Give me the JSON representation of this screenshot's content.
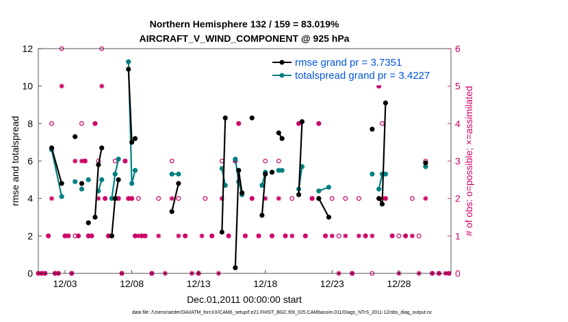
{
  "chart_data": {
    "type": "line",
    "title": "Northern Hemisphere 132 / 159 = 83.019%",
    "subtitle": "AIRCRAFT_V_WIND_COMPONENT @ 925 hPa",
    "xlabel": "Dec.01,2011 00:00:00 start",
    "ylabel": "rmse and totalspread",
    "y2label": "# of obs: o=possible; ×=assimilated",
    "footnote": "data file: /Users/raeder/DAI/ATM_forcXX/CAM6_setup/f.e21.FHIST_BGC.f09_025.CAM6assim.011/Diags_NTrS_2011-12/obs_diag_output.nc",
    "xlim": [
      1,
      31.9
    ],
    "ylim": [
      0,
      12
    ],
    "y2lim": [
      0,
      6
    ],
    "xticks": [
      {
        "v": 3,
        "label": "12/03"
      },
      {
        "v": 8,
        "label": "12/08"
      },
      {
        "v": 13,
        "label": "12/13"
      },
      {
        "v": 18,
        "label": "12/18"
      },
      {
        "v": 23,
        "label": "12/23"
      },
      {
        "v": 28,
        "label": "12/28"
      }
    ],
    "yticks": [
      "0",
      "2",
      "4",
      "6",
      "8",
      "10",
      "12"
    ],
    "y2ticks": [
      "0",
      "1",
      "2",
      "3",
      "4",
      "5",
      "6"
    ],
    "legend": [
      {
        "label": "rmse grand pr = 3.7351",
        "color": "#000000"
      },
      {
        "label": "totalspread grand pr = 3.4227",
        "color": "#008080"
      }
    ],
    "colors": {
      "rmse": "#000000",
      "spread": "#008080",
      "obs": "#cc0066",
      "legend_text": "#0055dd"
    },
    "series": [
      {
        "name": "rmse",
        "points": [
          [
            2.0,
            6.7
          ],
          [
            2.75,
            4.8
          ],
          [
            3.75,
            7.3
          ],
          [
            4.25,
            4.8
          ],
          [
            4.75,
            2.7
          ],
          [
            5.25,
            3.0
          ],
          [
            5.5,
            5.8
          ],
          [
            5.75,
            6.7
          ],
          [
            6.5,
            2.0
          ],
          [
            6.75,
            4.0
          ],
          [
            7.0,
            5.0
          ],
          [
            7.75,
            10.9
          ],
          [
            8.0,
            7.0
          ],
          [
            8.25,
            7.2
          ],
          [
            11.0,
            3.3
          ],
          [
            11.5,
            4.8
          ],
          [
            14.75,
            2.2
          ],
          [
            15.0,
            8.3
          ],
          [
            15.75,
            0.3
          ],
          [
            16.0,
            5.5
          ],
          [
            16.25,
            4.3
          ],
          [
            17.0,
            8.3
          ],
          [
            17.75,
            3.1
          ],
          [
            18.0,
            5.3
          ],
          [
            18.5,
            5.4
          ],
          [
            19.0,
            7.5
          ],
          [
            19.25,
            7.2
          ],
          [
            20.5,
            4.2
          ],
          [
            20.75,
            8.1
          ],
          [
            22.0,
            4.0
          ],
          [
            22.75,
            3.0
          ],
          [
            26.0,
            7.7
          ],
          [
            26.5,
            4.0
          ],
          [
            26.75,
            3.7
          ],
          [
            27.0,
            9.1
          ],
          [
            30.0,
            5.9
          ]
        ]
      },
      {
        "name": "totalspread",
        "points": [
          [
            2.0,
            6.6
          ],
          [
            2.75,
            4.1
          ],
          [
            3.75,
            4.9
          ],
          [
            4.25,
            4.5
          ],
          [
            4.75,
            5.0
          ],
          [
            5.5,
            4.4
          ],
          [
            5.75,
            5.0
          ],
          [
            6.5,
            4.0
          ],
          [
            6.75,
            5.3
          ],
          [
            7.0,
            6.1
          ],
          [
            7.75,
            11.3
          ],
          [
            8.0,
            4.8
          ],
          [
            8.25,
            5.5
          ],
          [
            11.0,
            5.3
          ],
          [
            11.5,
            5.3
          ],
          [
            14.75,
            5.6
          ],
          [
            15.0,
            4.7
          ],
          [
            15.75,
            6.1
          ],
          [
            16.0,
            4.9
          ],
          [
            16.25,
            4.2
          ],
          [
            17.75,
            4.7
          ],
          [
            18.0,
            5.4
          ],
          [
            19.0,
            5.5
          ],
          [
            19.25,
            5.5
          ],
          [
            20.5,
            4.5
          ],
          [
            20.75,
            5.7
          ],
          [
            22.0,
            4.4
          ],
          [
            22.75,
            4.6
          ],
          [
            26.0,
            5.3
          ],
          [
            26.5,
            4.5
          ],
          [
            26.75,
            5.3
          ],
          [
            27.0,
            5.3
          ],
          [
            30.0,
            5.7
          ]
        ]
      }
    ],
    "segments": [
      [
        2.0,
        2.75
      ],
      [
        5.25,
        5.75
      ],
      [
        6.5,
        7.0
      ],
      [
        7.75,
        8.25
      ],
      [
        11.0,
        11.5
      ],
      [
        14.75,
        15.0
      ],
      [
        15.75,
        16.25
      ],
      [
        17.75,
        18.0
      ],
      [
        19.0,
        19.25
      ],
      [
        20.5,
        20.75
      ],
      [
        22.0,
        22.75
      ],
      [
        26.5,
        27.0
      ]
    ],
    "obs_possible": [
      [
        1.0,
        0
      ],
      [
        1.25,
        0
      ],
      [
        1.5,
        0
      ],
      [
        1.75,
        1
      ],
      [
        2.0,
        4
      ],
      [
        2.25,
        0
      ],
      [
        2.5,
        0
      ],
      [
        2.75,
        6
      ],
      [
        3.0,
        1
      ],
      [
        3.25,
        1
      ],
      [
        3.5,
        0
      ],
      [
        3.75,
        1
      ],
      [
        4.0,
        1
      ],
      [
        4.25,
        4
      ],
      [
        4.5,
        3
      ],
      [
        4.75,
        1
      ],
      [
        5.0,
        1
      ],
      [
        5.25,
        4
      ],
      [
        5.5,
        3
      ],
      [
        5.75,
        6
      ],
      [
        6.0,
        2
      ],
      [
        6.25,
        1
      ],
      [
        6.5,
        1
      ],
      [
        6.75,
        3
      ],
      [
        7.0,
        2
      ],
      [
        7.25,
        0
      ],
      [
        7.5,
        3
      ],
      [
        7.75,
        2
      ],
      [
        8.0,
        2
      ],
      [
        8.25,
        1
      ],
      [
        8.5,
        2
      ],
      [
        8.75,
        1
      ],
      [
        9.0,
        1
      ],
      [
        9.5,
        0
      ],
      [
        10.0,
        2
      ],
      [
        11.0,
        3
      ],
      [
        11.5,
        2
      ],
      [
        12.0,
        1
      ],
      [
        13.0,
        0
      ],
      [
        13.5,
        2
      ],
      [
        14.0,
        1
      ],
      [
        14.75,
        3
      ],
      [
        15.25,
        1
      ],
      [
        15.75,
        3
      ],
      [
        16.0,
        4
      ],
      [
        16.5,
        1
      ],
      [
        17.0,
        2
      ],
      [
        17.5,
        1
      ],
      [
        18.0,
        3
      ],
      [
        18.5,
        1
      ],
      [
        19.0,
        3
      ],
      [
        19.5,
        1
      ],
      [
        20.0,
        2
      ],
      [
        20.5,
        4
      ],
      [
        21.0,
        1
      ],
      [
        21.5,
        2
      ],
      [
        22.0,
        4
      ],
      [
        22.5,
        1
      ],
      [
        23.0,
        2
      ],
      [
        23.5,
        1
      ],
      [
        24.0,
        2
      ],
      [
        24.5,
        0
      ],
      [
        25.0,
        2
      ],
      [
        25.5,
        1
      ],
      [
        26.0,
        0
      ],
      [
        26.5,
        5
      ],
      [
        26.75,
        4
      ],
      [
        27.0,
        2
      ],
      [
        27.5,
        1
      ],
      [
        28.0,
        1
      ],
      [
        28.5,
        1
      ],
      [
        29.0,
        2
      ],
      [
        29.5,
        1
      ],
      [
        30.0,
        3
      ],
      [
        30.5,
        0
      ],
      [
        31.0,
        0
      ],
      [
        31.75,
        0
      ]
    ],
    "obs_assimilated": [
      [
        1.0,
        0
      ],
      [
        1.25,
        0
      ],
      [
        1.5,
        0
      ],
      [
        1.75,
        1
      ],
      [
        2.0,
        2
      ],
      [
        2.25,
        0
      ],
      [
        2.5,
        0
      ],
      [
        2.75,
        5
      ],
      [
        3.0,
        1
      ],
      [
        3.25,
        1
      ],
      [
        3.5,
        0
      ],
      [
        3.75,
        3
      ],
      [
        4.0,
        1
      ],
      [
        4.25,
        3
      ],
      [
        4.5,
        3
      ],
      [
        4.75,
        1
      ],
      [
        5.0,
        1
      ],
      [
        5.25,
        4
      ],
      [
        5.5,
        2
      ],
      [
        5.75,
        5
      ],
      [
        6.0,
        2
      ],
      [
        6.25,
        1
      ],
      [
        6.5,
        1
      ],
      [
        6.75,
        2
      ],
      [
        7.0,
        2
      ],
      [
        7.25,
        0
      ],
      [
        7.5,
        3
      ],
      [
        7.75,
        2
      ],
      [
        8.0,
        2
      ],
      [
        8.25,
        1
      ],
      [
        8.5,
        1
      ],
      [
        8.75,
        1
      ],
      [
        9.0,
        1
      ],
      [
        9.5,
        0
      ],
      [
        10.0,
        1
      ],
      [
        10.5,
        0
      ],
      [
        11.0,
        2
      ],
      [
        11.5,
        1
      ],
      [
        12.0,
        1
      ],
      [
        12.5,
        0
      ],
      [
        13.0,
        0
      ],
      [
        13.25,
        1
      ],
      [
        14.0,
        1
      ],
      [
        14.5,
        0
      ],
      [
        14.75,
        2
      ],
      [
        15.25,
        1
      ],
      [
        15.75,
        3
      ],
      [
        16.0,
        4
      ],
      [
        16.5,
        1
      ],
      [
        17.0,
        2
      ],
      [
        17.5,
        1
      ],
      [
        18.0,
        2
      ],
      [
        18.5,
        1
      ],
      [
        19.0,
        2
      ],
      [
        19.5,
        1
      ],
      [
        20.0,
        1
      ],
      [
        20.5,
        4
      ],
      [
        21.0,
        1
      ],
      [
        21.5,
        2
      ],
      [
        22.0,
        4
      ],
      [
        22.5,
        1
      ],
      [
        23.0,
        1
      ],
      [
        23.5,
        0
      ],
      [
        24.0,
        1
      ],
      [
        24.5,
        0
      ],
      [
        25.0,
        1
      ],
      [
        25.5,
        1
      ],
      [
        26.0,
        1
      ],
      [
        26.5,
        5
      ],
      [
        26.75,
        2
      ],
      [
        27.0,
        2
      ],
      [
        27.5,
        1
      ],
      [
        28.0,
        0
      ],
      [
        28.5,
        1
      ],
      [
        29.0,
        1
      ],
      [
        29.5,
        0
      ],
      [
        30.0,
        2
      ],
      [
        30.5,
        0
      ],
      [
        31.0,
        0
      ],
      [
        31.5,
        0
      ],
      [
        31.75,
        0
      ]
    ]
  }
}
